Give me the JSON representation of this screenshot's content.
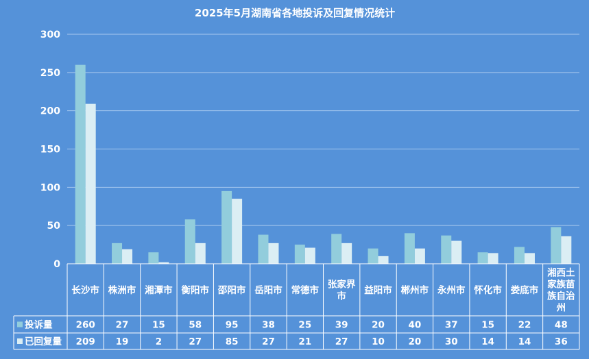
{
  "chart_data": {
    "type": "bar",
    "title": "2025年5月湖南省各地投诉及回复情况统计",
    "categories": [
      "长沙市",
      "株洲市",
      "湘潭市",
      "衡阳市",
      "邵阳市",
      "岳阳市",
      "常德市",
      "张家界市",
      "益阳市",
      "郴州市",
      "永州市",
      "怀化市",
      "娄底市",
      "湘西土家族苗族自治州"
    ],
    "category_lines": [
      [
        "长沙市"
      ],
      [
        "株洲市"
      ],
      [
        "湘潭市"
      ],
      [
        "衡阳市"
      ],
      [
        "邵阳市"
      ],
      [
        "岳阳市"
      ],
      [
        "常德市"
      ],
      [
        "张家界",
        "市"
      ],
      [
        "益阳市"
      ],
      [
        "郴州市"
      ],
      [
        "永州市"
      ],
      [
        "怀化市"
      ],
      [
        "娄底市"
      ],
      [
        "湘西土",
        "家族苗",
        "族自治",
        "州"
      ]
    ],
    "series": [
      {
        "name": "投诉量",
        "color": "#92cddc",
        "values": [
          260,
          27,
          15,
          58,
          95,
          38,
          25,
          39,
          20,
          40,
          37,
          15,
          22,
          48
        ]
      },
      {
        "name": "已回复量",
        "color": "#dbeef4",
        "values": [
          209,
          19,
          2,
          27,
          85,
          27,
          21,
          27,
          10,
          20,
          30,
          14,
          14,
          36
        ]
      }
    ],
    "ylim": [
      0,
      300
    ],
    "yticks": [
      0,
      50,
      100,
      150,
      200,
      250,
      300
    ],
    "grid": true,
    "legend": "data-table"
  },
  "colors": {
    "background": "#5592d9",
    "grid": "#a9c8ee",
    "table_line": "#ffffff",
    "text": "#ffffff"
  }
}
